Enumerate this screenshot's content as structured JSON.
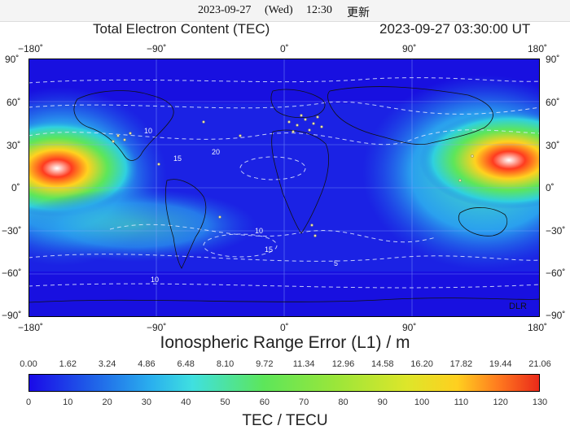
{
  "status_bar": {
    "date": "2023-09-27",
    "weekday": "(Wed)",
    "time": "12:30",
    "update_label": "更新"
  },
  "map": {
    "title": "Total Electron Content (TEC)",
    "timestamp": "2023-09-27  03:30:00 UT",
    "lon_ticks": [
      "−180˚",
      "−90˚",
      "0˚",
      "90˚",
      "180˚"
    ],
    "lat_ticks": [
      "90˚",
      "60˚",
      "30˚",
      "0˚",
      "−30˚",
      "−60˚",
      "−90˚"
    ],
    "contour_labels": [
      "10",
      "15",
      "20",
      "10",
      "15",
      "10",
      "5"
    ],
    "credit": "DLR"
  },
  "subtitle": "Ionospheric Range Error (L1) / m",
  "range_error_ticks": [
    "0.00",
    "1.62",
    "3.24",
    "4.86",
    "6.48",
    "8.10",
    "9.72",
    "11.34",
    "12.96",
    "14.58",
    "16.20",
    "17.82",
    "19.44",
    "21.06"
  ],
  "tec_ticks": [
    "0",
    "10",
    "20",
    "30",
    "40",
    "50",
    "60",
    "70",
    "80",
    "90",
    "100",
    "110",
    "120",
    "130"
  ],
  "unit_label": "TEC / TECU",
  "colors": {
    "low": "#1a1ae6",
    "mid": "#7fe35a",
    "high": "#e8301a",
    "peak": "#ffffff"
  }
}
